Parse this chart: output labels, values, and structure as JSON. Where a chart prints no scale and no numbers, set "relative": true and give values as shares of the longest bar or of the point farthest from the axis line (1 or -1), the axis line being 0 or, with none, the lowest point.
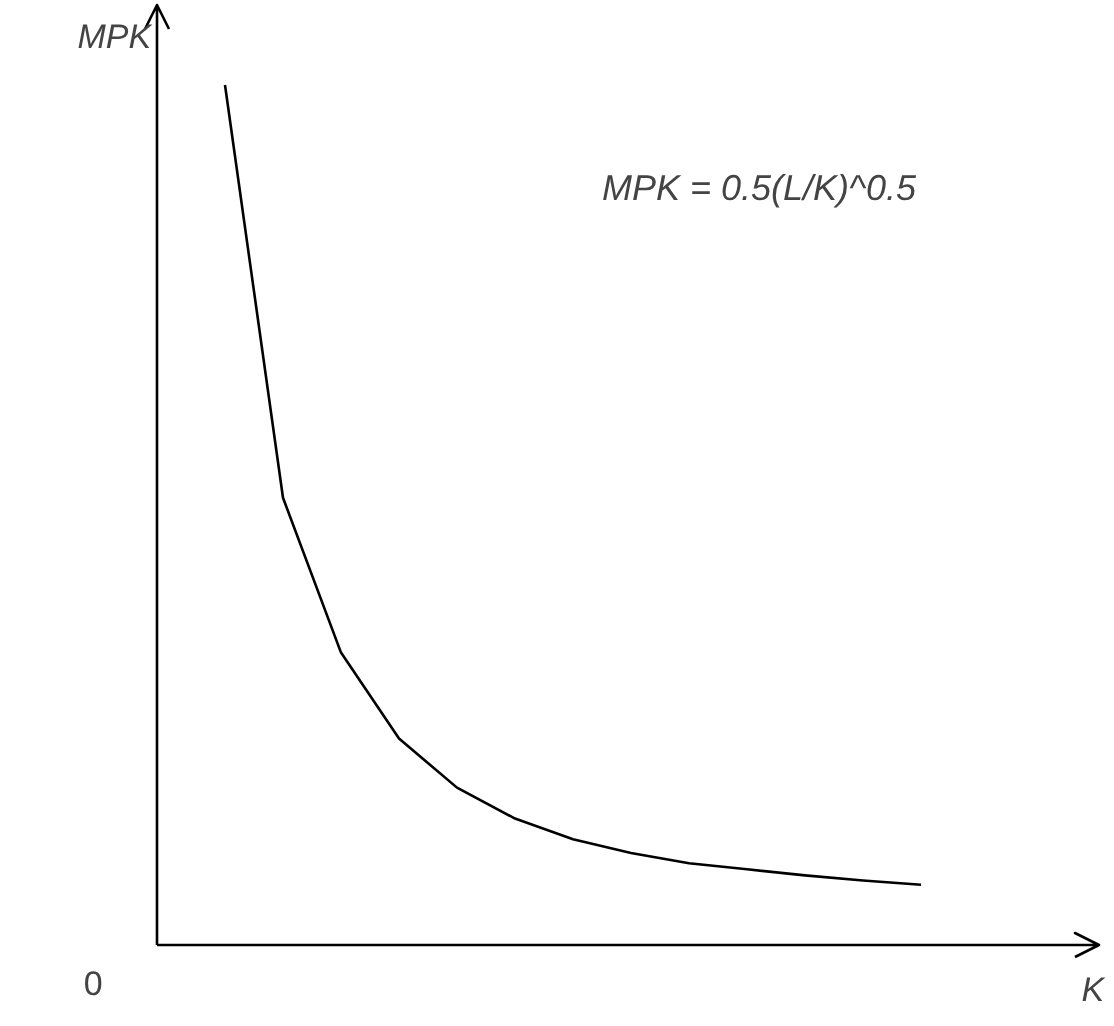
{
  "chart_data": {
    "type": "line",
    "relative": true,
    "xlabel": "K",
    "ylabel": "MPK",
    "color": "#000000",
    "categories": [
      null,
      null,
      null,
      null,
      null,
      null,
      null,
      null,
      null,
      null,
      null,
      null,
      null
    ],
    "values": [
      1.0,
      0.52,
      0.34,
      0.24,
      0.183,
      0.147,
      0.123,
      0.107,
      0.095,
      0.088,
      0.081,
      0.075,
      0.07
    ],
    "annotations": [
      "0",
      "MPK = 0.5(L/K)^0.5"
    ],
    "grid": false,
    "marker": "none",
    "line_style": "solid"
  }
}
